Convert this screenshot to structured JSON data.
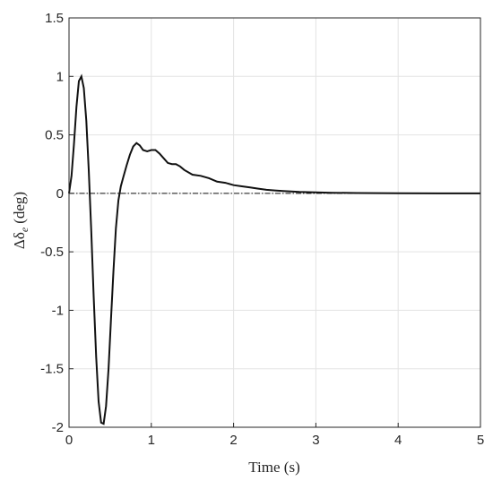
{
  "chart_data": {
    "type": "line",
    "title": "",
    "xlabel": "Time (s)",
    "ylabel": "Δδ_e (deg)",
    "ylabel_parts": {
      "main": "Δδ",
      "sub": "e",
      "unit": "(deg)"
    },
    "xlim": [
      0,
      5
    ],
    "ylim": [
      -2,
      1.5
    ],
    "x_ticks": [
      0,
      1,
      2,
      3,
      4,
      5
    ],
    "x_tick_labels": [
      "0",
      "1",
      "2",
      "3",
      "4",
      "5"
    ],
    "y_ticks": [
      1.5,
      1,
      0.5,
      0,
      -0.5,
      -1,
      -1.5,
      -2
    ],
    "y_tick_labels": [
      "1.5",
      "1",
      "0.5",
      "0",
      "-0.5",
      "-1",
      "-1.5",
      "-2"
    ],
    "grid": true,
    "legend": "none",
    "series": [
      {
        "style": "solid",
        "color": "#111111",
        "x": [
          0,
          0.03,
          0.06,
          0.09,
          0.12,
          0.15,
          0.18,
          0.21,
          0.24,
          0.27,
          0.3,
          0.33,
          0.36,
          0.39,
          0.42,
          0.45,
          0.48,
          0.51,
          0.54,
          0.57,
          0.6,
          0.63,
          0.66,
          0.7,
          0.74,
          0.78,
          0.82,
          0.86,
          0.9,
          0.95,
          1.0,
          1.05,
          1.1,
          1.15,
          1.2,
          1.25,
          1.3,
          1.35,
          1.4,
          1.5,
          1.6,
          1.7,
          1.8,
          1.9,
          2.0,
          2.1,
          2.2,
          2.3,
          2.4,
          2.5,
          2.6,
          2.8,
          3.0,
          3.2,
          3.5,
          4.0,
          4.5,
          5.0
        ],
        "y": [
          0,
          0.15,
          0.42,
          0.74,
          0.96,
          1.0,
          0.9,
          0.62,
          0.2,
          -0.32,
          -0.88,
          -1.4,
          -1.78,
          -1.96,
          -1.97,
          -1.82,
          -1.5,
          -1.08,
          -0.66,
          -0.3,
          -0.06,
          0.06,
          0.14,
          0.24,
          0.33,
          0.4,
          0.43,
          0.41,
          0.37,
          0.36,
          0.37,
          0.37,
          0.34,
          0.3,
          0.26,
          0.25,
          0.25,
          0.23,
          0.2,
          0.16,
          0.15,
          0.13,
          0.1,
          0.09,
          0.07,
          0.06,
          0.05,
          0.04,
          0.03,
          0.025,
          0.02,
          0.012,
          0.008,
          0.005,
          0.003,
          0.001,
          0,
          0
        ]
      },
      {
        "style": "dashdot",
        "color": "#111111",
        "x": [
          0,
          5
        ],
        "y": [
          0,
          0
        ]
      }
    ]
  }
}
